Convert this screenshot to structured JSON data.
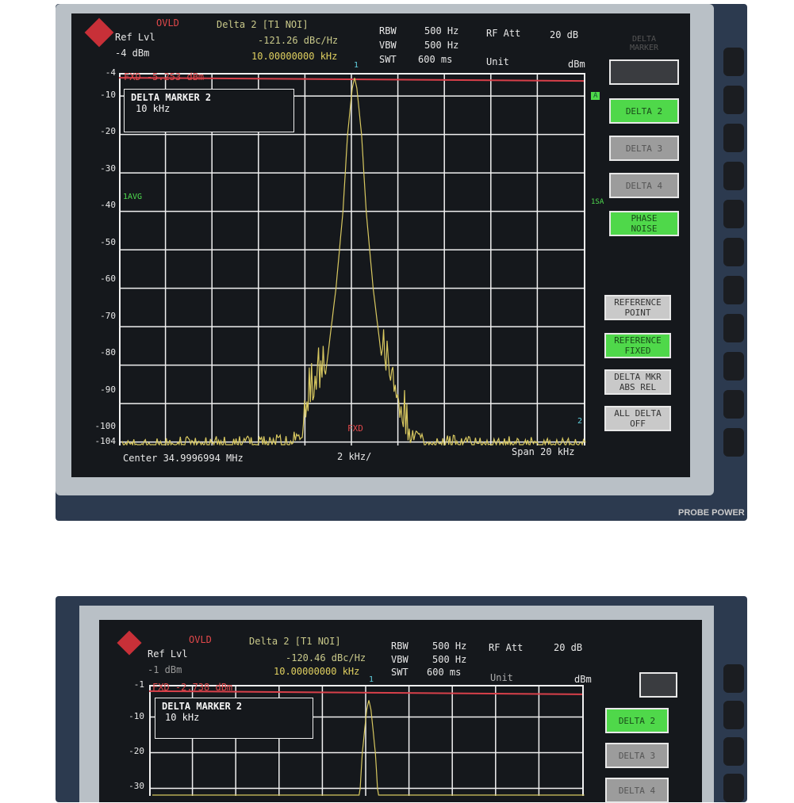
{
  "screens": [
    {
      "status": "OVLD",
      "marker_title": "Delta 2 [T1 NOI]",
      "marker_value": "-121.26 dBc/Hz",
      "marker_freq": "10.00000000 kHz",
      "ref_lvl_label": "Ref Lvl",
      "ref_lvl": "-4 dBm",
      "rbw_label": "RBW",
      "rbw": "500 Hz",
      "vbw_label": "VBW",
      "vbw": "500 Hz",
      "swt_label": "SWT",
      "swt": "600 ms",
      "rf_att_label": "RF Att",
      "rf_att": "20 dB",
      "unit_label": "Unit",
      "unit": "dBm",
      "fxd_line": "FXD -5.253 dBm",
      "delta_box_title": "DELTA MARKER 2",
      "delta_box_value": "10 kHz",
      "trace_label": "1AVG",
      "side_a": "A",
      "side_1sa": "1SA",
      "fxd_marker": "FXD",
      "marker1": "1",
      "marker2": "2",
      "center": "Center 34.9996994 MHz",
      "div": "2 kHz/",
      "span": "Span 20 kHz",
      "menu_title": "DELTA MARKER",
      "y_ticks": [
        "-4",
        "-10",
        "-20",
        "-30",
        "-40",
        "-50",
        "-60",
        "-70",
        "-80",
        "-90",
        "-100",
        "-104"
      ]
    },
    {
      "status": "OVLD",
      "marker_title": "Delta 2 [T1 NOI]",
      "marker_value": "-120.46 dBc/Hz",
      "marker_freq": "10.00000000 kHz",
      "ref_lvl_label": "Ref Lvl",
      "ref_lvl": "-1 dBm",
      "rbw_label": "RBW",
      "rbw": "500 Hz",
      "vbw_label": "VBW",
      "vbw": "500 Hz",
      "swt_label": "SWT",
      "swt": "600 ms",
      "rf_att_label": "RF Att",
      "rf_att": "20 dB",
      "unit_label": "Unit",
      "unit": "dBm",
      "fxd_line": "FXD -2.738 dBm",
      "delta_box_title": "DELTA MARKER 2",
      "delta_box_value": "10 kHz",
      "marker1": "1",
      "y_ticks": [
        "-1",
        "-10",
        "-20",
        "-30"
      ]
    }
  ],
  "softkeys": [
    {
      "label": "",
      "state": "empty"
    },
    {
      "label": "DELTA 2",
      "state": "on"
    },
    {
      "label": "DELTA 3",
      "state": "off"
    },
    {
      "label": "DELTA 4",
      "state": "off"
    },
    {
      "label": "PHASE NOISE",
      "state": "on"
    },
    {
      "label": "REFERENCE POINT",
      "state": "normal"
    },
    {
      "label": "REFERENCE FIXED",
      "state": "on"
    },
    {
      "label": "DELTA MKR ABS REL",
      "state": "normal"
    },
    {
      "label": "ALL DELTA OFF",
      "state": "normal"
    }
  ],
  "panel_label": "PROBE POWER",
  "colors": {
    "trace": "#d8c860",
    "fxd_line": "#d8404a",
    "grid": "#f0f0f0",
    "softkey_active": "#4fd84a",
    "screen": "#15181c"
  },
  "chart_data": {
    "type": "line",
    "xlabel": "Span 20 kHz",
    "x_unit": "kHz offset from center",
    "xlim": [
      -10,
      10
    ],
    "ylabel": "dBm",
    "ylim": [
      -104,
      -4
    ],
    "grid": true,
    "series": [
      {
        "x": [
          -10,
          -3,
          -2.2,
          -1.8,
          -1.2,
          -0.8,
          -0.5,
          -0.3,
          -0.1,
          0,
          0.1,
          0.3,
          0.5,
          0.8,
          1.2,
          1.8,
          2.2,
          3,
          10
        ],
        "y": [
          -101,
          -100,
          -98,
          -88,
          -80,
          -60,
          -40,
          -20,
          -8,
          -5.3,
          -8,
          -20,
          -40,
          -60,
          -80,
          -88,
          -98,
          -100,
          -101
        ]
      }
    ]
  }
}
